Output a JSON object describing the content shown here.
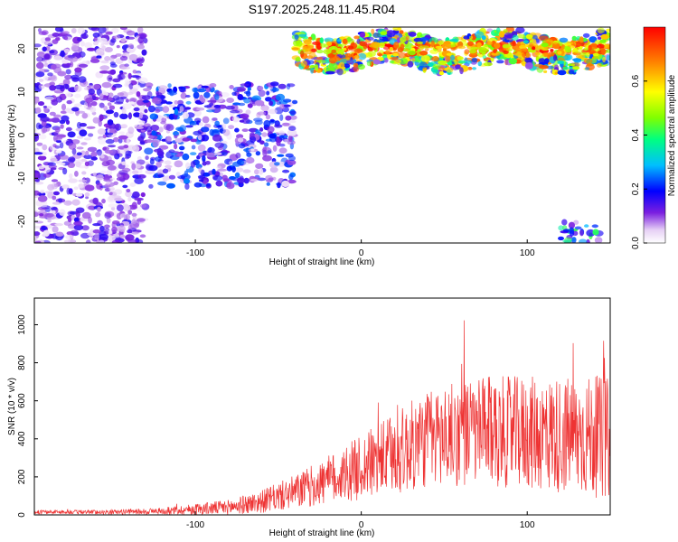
{
  "title": "S197.2025.248.11.45.R04",
  "colorbar": {
    "label": "Normalized spectral amplitude",
    "ticks": [
      "0.0",
      "0.2",
      "0.4",
      "0.6"
    ],
    "tick_values": [
      0.0,
      0.2,
      0.4,
      0.6
    ],
    "range": [
      0.0,
      0.8
    ]
  },
  "chart_data": [
    {
      "type": "heatmap",
      "xlabel": "Height of straight line (km)",
      "ylabel": "Frequency (Hz)",
      "xlim": [
        -197,
        150
      ],
      "ylim": [
        -25,
        25
      ],
      "xticks": [
        -100,
        0,
        100
      ],
      "xtick_labels": [
        "-100",
        "0",
        "100"
      ],
      "yticks": [
        -20,
        -10,
        0,
        10,
        20
      ],
      "ytick_labels": [
        "-20",
        "-10",
        "0",
        "10",
        "20"
      ],
      "regions": [
        {
          "x_range": [
            -197,
            -130
          ],
          "y_range": [
            -25,
            25
          ],
          "level": 0.12
        },
        {
          "x_range": [
            -130,
            -40
          ],
          "y_range": [
            -12,
            12
          ],
          "level": 0.18
        },
        {
          "x_range": [
            -40,
            150
          ],
          "y_range": [
            14,
            24
          ],
          "level": 0.5
        },
        {
          "x_range": [
            120,
            145
          ],
          "y_range": [
            -25,
            -20
          ],
          "level": 0.3
        }
      ]
    },
    {
      "type": "line",
      "xlabel": "Height of straight line (km)",
      "ylabel": "SNR (10 * v/v)",
      "xlim": [
        -197,
        150
      ],
      "ylim": [
        0,
        1140
      ],
      "xticks": [
        -100,
        0,
        100
      ],
      "xtick_labels": [
        "-100",
        "0",
        "100"
      ],
      "yticks": [
        0,
        200,
        400,
        600,
        800,
        1000
      ],
      "ytick_labels": [
        "0",
        "200",
        "400",
        "600",
        "800",
        "1000"
      ],
      "color": "#ee3333",
      "envelope": {
        "x": [
          -197,
          -150,
          -120,
          -100,
          -80,
          -60,
          -40,
          -20,
          0,
          20,
          40,
          60,
          80,
          100,
          120,
          140,
          150
        ],
        "mean": [
          15,
          15,
          20,
          30,
          40,
          70,
          120,
          180,
          250,
          320,
          400,
          430,
          440,
          430,
          420,
          410,
          400
        ],
        "spread": [
          10,
          12,
          18,
          30,
          40,
          60,
          90,
          130,
          170,
          220,
          260,
          280,
          290,
          300,
          310,
          320,
          320
        ]
      }
    }
  ]
}
